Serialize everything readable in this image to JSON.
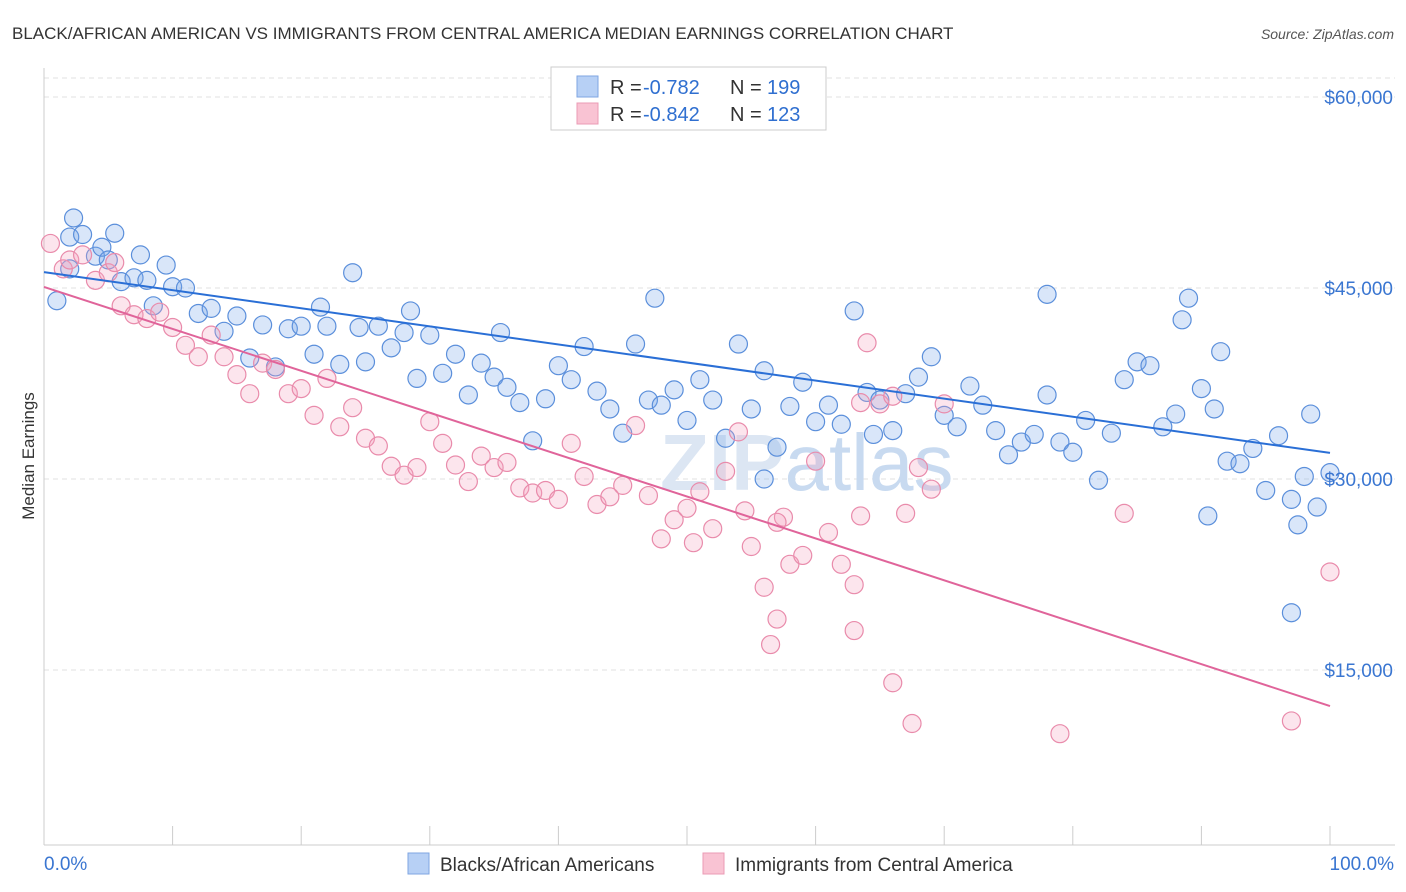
{
  "chart_data": {
    "type": "scatter",
    "title": "BLACK/AFRICAN AMERICAN VS IMMIGRANTS FROM CENTRAL AMERICA MEDIAN EARNINGS CORRELATION CHART",
    "source": "Source: ZipAtlas.com",
    "xlabel": "",
    "ylabel": "Median Earnings",
    "xlim": [
      0,
      100
    ],
    "ylim": [
      0,
      63000
    ],
    "x_tick_labels": [
      "0.0%",
      "100.0%"
    ],
    "y_ticks": [
      15000,
      30000,
      45000,
      60000
    ],
    "y_tick_labels": [
      "$15,000",
      "$30,000",
      "$45,000",
      "$60,000"
    ],
    "grid": true,
    "legend_placement": "top-center",
    "watermark": "ZIPatlas",
    "series": [
      {
        "name": "Blacks/African Americans",
        "color": "#5b8fdb",
        "line_color": "#2a6fd6",
        "R": "-0.782",
        "N": "199",
        "trend": [
          [
            0,
            46250
          ],
          [
            100,
            32050
          ]
        ],
        "points": [
          [
            1,
            44000
          ],
          [
            2,
            46500
          ],
          [
            2,
            49000
          ],
          [
            2.3,
            50500
          ],
          [
            3,
            49200
          ],
          [
            4,
            47500
          ],
          [
            4.5,
            48200
          ],
          [
            5,
            47200
          ],
          [
            5.5,
            49300
          ],
          [
            6,
            45500
          ],
          [
            7,
            45800
          ],
          [
            7.5,
            47600
          ],
          [
            8,
            45600
          ],
          [
            8.5,
            43600
          ],
          [
            9.5,
            46800
          ],
          [
            10,
            45100
          ],
          [
            11,
            45000
          ],
          [
            12,
            43000
          ],
          [
            13,
            43400
          ],
          [
            14,
            41600
          ],
          [
            15,
            42800
          ],
          [
            16,
            39500
          ],
          [
            17,
            42100
          ],
          [
            18,
            38800
          ],
          [
            19,
            41800
          ],
          [
            20,
            42000
          ],
          [
            21,
            39800
          ],
          [
            21.5,
            43500
          ],
          [
            22,
            42000
          ],
          [
            23,
            39000
          ],
          [
            24,
            46200
          ],
          [
            24.5,
            41900
          ],
          [
            25,
            39200
          ],
          [
            26,
            42000
          ],
          [
            27,
            40300
          ],
          [
            28,
            41500
          ],
          [
            28.5,
            43200
          ],
          [
            29,
            37900
          ],
          [
            30,
            41300
          ],
          [
            31,
            38300
          ],
          [
            32,
            39800
          ],
          [
            33,
            36600
          ],
          [
            34,
            39100
          ],
          [
            35,
            38000
          ],
          [
            35.5,
            41500
          ],
          [
            36,
            37200
          ],
          [
            37,
            36000
          ],
          [
            38,
            33000
          ],
          [
            39,
            36300
          ],
          [
            40,
            38900
          ],
          [
            41,
            37800
          ],
          [
            42,
            40400
          ],
          [
            43,
            36900
          ],
          [
            44,
            35500
          ],
          [
            45,
            33600
          ],
          [
            46,
            40600
          ],
          [
            47,
            36200
          ],
          [
            47.5,
            44200
          ],
          [
            48,
            35800
          ],
          [
            49,
            37000
          ],
          [
            50,
            34600
          ],
          [
            51,
            37800
          ],
          [
            52,
            36200
          ],
          [
            53,
            33200
          ],
          [
            54,
            40600
          ],
          [
            55,
            35500
          ],
          [
            56,
            38500
          ],
          [
            57,
            32500
          ],
          [
            58,
            35700
          ],
          [
            59,
            37600
          ],
          [
            60,
            34500
          ],
          [
            61,
            35800
          ],
          [
            62,
            34300
          ],
          [
            63,
            43200
          ],
          [
            64,
            36800
          ],
          [
            65,
            36200
          ],
          [
            66,
            33800
          ],
          [
            67,
            36700
          ],
          [
            68,
            38000
          ],
          [
            69,
            39600
          ],
          [
            70,
            35000
          ],
          [
            71,
            34100
          ],
          [
            72,
            37300
          ],
          [
            73,
            35800
          ],
          [
            74,
            33800
          ],
          [
            75,
            31900
          ],
          [
            76,
            32900
          ],
          [
            77,
            33500
          ],
          [
            78,
            36600
          ],
          [
            79,
            32900
          ],
          [
            80,
            32100
          ],
          [
            81,
            34600
          ],
          [
            82,
            29900
          ],
          [
            83,
            33600
          ],
          [
            84,
            37800
          ],
          [
            85,
            39200
          ],
          [
            86,
            38900
          ],
          [
            87,
            34100
          ],
          [
            88,
            35100
          ],
          [
            88.5,
            42500
          ],
          [
            89,
            44200
          ],
          [
            90,
            37100
          ],
          [
            91,
            35500
          ],
          [
            92,
            31400
          ],
          [
            93,
            31200
          ],
          [
            91.5,
            40000
          ],
          [
            94,
            32400
          ],
          [
            95,
            29100
          ],
          [
            96,
            33400
          ],
          [
            97,
            28400
          ],
          [
            98,
            30200
          ],
          [
            98.5,
            35100
          ],
          [
            99,
            27800
          ],
          [
            100,
            30500
          ],
          [
            97.5,
            26400
          ],
          [
            97,
            19500
          ],
          [
            90.5,
            27100
          ],
          [
            78,
            44500
          ],
          [
            64.5,
            33500
          ],
          [
            56,
            30000
          ]
        ]
      },
      {
        "name": "Immigrants from Central America",
        "color": "#e98bab",
        "line_color": "#e0649a",
        "R": "-0.842",
        "N": "123",
        "trend": [
          [
            0,
            45080
          ],
          [
            100,
            12170
          ]
        ],
        "points": [
          [
            0.5,
            48500
          ],
          [
            1.5,
            46500
          ],
          [
            2,
            47200
          ],
          [
            3,
            47600
          ],
          [
            4,
            45600
          ],
          [
            5,
            46200
          ],
          [
            5.5,
            47000
          ],
          [
            6,
            43600
          ],
          [
            7,
            42900
          ],
          [
            8,
            42600
          ],
          [
            9,
            43100
          ],
          [
            10,
            41900
          ],
          [
            11,
            40500
          ],
          [
            12,
            39600
          ],
          [
            13,
            41300
          ],
          [
            14,
            39600
          ],
          [
            15,
            38200
          ],
          [
            16,
            36700
          ],
          [
            17,
            39100
          ],
          [
            18,
            38600
          ],
          [
            19,
            36700
          ],
          [
            20,
            37100
          ],
          [
            21,
            35000
          ],
          [
            22,
            37900
          ],
          [
            23,
            34100
          ],
          [
            24,
            35600
          ],
          [
            25,
            33200
          ],
          [
            26,
            32600
          ],
          [
            27,
            31000
          ],
          [
            28,
            30300
          ],
          [
            29,
            30900
          ],
          [
            30,
            34500
          ],
          [
            31,
            32800
          ],
          [
            32,
            31100
          ],
          [
            33,
            29800
          ],
          [
            34,
            31800
          ],
          [
            35,
            30900
          ],
          [
            36,
            31300
          ],
          [
            37,
            29300
          ],
          [
            38,
            28900
          ],
          [
            39,
            29100
          ],
          [
            40,
            28400
          ],
          [
            41,
            32800
          ],
          [
            42,
            30200
          ],
          [
            43,
            28000
          ],
          [
            44,
            28600
          ],
          [
            45,
            29500
          ],
          [
            46,
            34200
          ],
          [
            47,
            28700
          ],
          [
            48,
            25300
          ],
          [
            49,
            26800
          ],
          [
            50,
            27700
          ],
          [
            50.5,
            25000
          ],
          [
            51,
            29000
          ],
          [
            52,
            26100
          ],
          [
            53,
            30600
          ],
          [
            54,
            33700
          ],
          [
            54.5,
            27500
          ],
          [
            55,
            24700
          ],
          [
            56,
            21500
          ],
          [
            57,
            19000
          ],
          [
            57.5,
            27000
          ],
          [
            58,
            23300
          ],
          [
            59,
            24000
          ],
          [
            60,
            31400
          ],
          [
            61,
            25800
          ],
          [
            62,
            23300
          ],
          [
            63,
            21700
          ],
          [
            63.5,
            27100
          ],
          [
            64,
            40700
          ],
          [
            65,
            35900
          ],
          [
            66,
            36500
          ],
          [
            67,
            27300
          ],
          [
            68,
            30900
          ],
          [
            69,
            29200
          ],
          [
            70,
            35900
          ],
          [
            56.5,
            17000
          ],
          [
            57,
            26600
          ],
          [
            66,
            14000
          ],
          [
            63,
            18100
          ],
          [
            63.5,
            36000
          ],
          [
            67.5,
            10800
          ],
          [
            79,
            10000
          ],
          [
            84,
            27300
          ],
          [
            97,
            11000
          ],
          [
            100,
            22700
          ]
        ]
      }
    ]
  },
  "legend": {
    "r_label": "R =",
    "n_label": "N ="
  }
}
